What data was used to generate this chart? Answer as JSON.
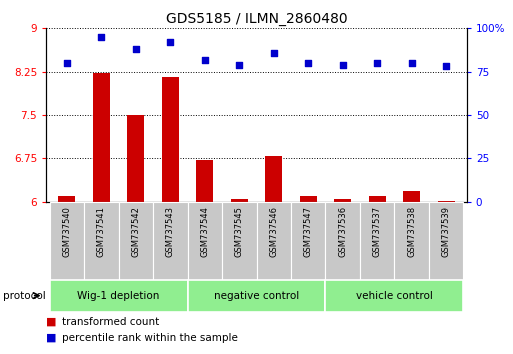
{
  "title": "GDS5185 / ILMN_2860480",
  "samples": [
    "GSM737540",
    "GSM737541",
    "GSM737542",
    "GSM737543",
    "GSM737544",
    "GSM737545",
    "GSM737546",
    "GSM737547",
    "GSM737536",
    "GSM737537",
    "GSM737538",
    "GSM737539"
  ],
  "red_values": [
    6.1,
    8.22,
    7.5,
    8.15,
    6.72,
    6.05,
    6.8,
    6.1,
    6.05,
    6.1,
    6.18,
    6.02
  ],
  "blue_values": [
    80,
    95,
    88,
    92,
    82,
    79,
    86,
    80,
    79,
    80,
    80,
    78
  ],
  "ylim_left": [
    6.0,
    9.0
  ],
  "ylim_right": [
    0,
    100
  ],
  "yticks_left": [
    6.0,
    6.75,
    7.5,
    8.25,
    9.0
  ],
  "yticks_right": [
    0,
    25,
    50,
    75,
    100
  ],
  "ytick_labels_left": [
    "6",
    "6.75",
    "7.5",
    "8.25",
    "9"
  ],
  "ytick_labels_right": [
    "0",
    "25",
    "50",
    "75",
    "100%"
  ],
  "group_defs": [
    {
      "start": 0,
      "end": 3,
      "label": "Wig-1 depletion"
    },
    {
      "start": 4,
      "end": 7,
      "label": "negative control"
    },
    {
      "start": 8,
      "end": 11,
      "label": "vehicle control"
    }
  ],
  "protocol_label": "protocol",
  "legend_red": "transformed count",
  "legend_blue": "percentile rank within the sample",
  "bar_color": "#CC0000",
  "dot_color": "#0000CC",
  "bg_color_sample": "#C8C8C8",
  "group_bg": "#90EE90",
  "bar_bottom": 6.0,
  "fig_width": 5.13,
  "fig_height": 3.54,
  "dpi": 100
}
